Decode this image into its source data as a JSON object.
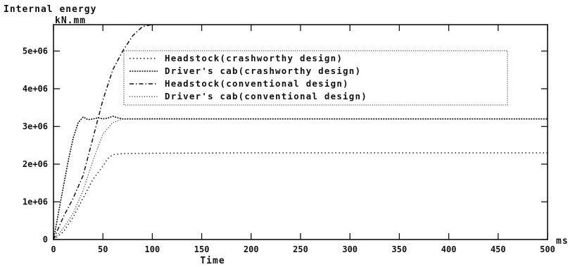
{
  "chart_data": {
    "type": "line",
    "title": "Internal energy",
    "ylabel_unit": "kN.mm",
    "xlabel": "Time",
    "xlabel_unit": "ms",
    "xlim": [
      0,
      500
    ],
    "ylim": [
      0,
      5700000
    ],
    "x_ticks": [
      0,
      50,
      100,
      150,
      200,
      250,
      300,
      350,
      400,
      450,
      500
    ],
    "x_tick_labels": [
      "0",
      "50",
      "100",
      "150",
      "200",
      "250",
      "300",
      "350",
      "400",
      "450",
      "500"
    ],
    "y_ticks": [
      0,
      1000000,
      2000000,
      3000000,
      4000000,
      5000000
    ],
    "y_tick_labels": [
      "0",
      "1e+06",
      "2e+06",
      "3e+06",
      "4e+06",
      "5e+06"
    ],
    "legend_position": "upper-center",
    "grid": false,
    "series": [
      {
        "name": "Headstock(crashworthy design)",
        "style": "dotted",
        "x": [
          0,
          10,
          20,
          30,
          40,
          50,
          55,
          60,
          70,
          100,
          200,
          300,
          400,
          500
        ],
        "y": [
          0,
          200000,
          600000,
          1100000,
          1600000,
          1950000,
          2150000,
          2250000,
          2280000,
          2290000,
          2300000,
          2300000,
          2300000,
          2300000
        ]
      },
      {
        "name": "Driver's cab(crashworthy design)",
        "style": "dense-dotted",
        "x": [
          0,
          5,
          10,
          15,
          20,
          25,
          30,
          35,
          40,
          45,
          50,
          55,
          60,
          65,
          70,
          80,
          100,
          200,
          300,
          400,
          500
        ],
        "y": [
          0,
          700000,
          1400000,
          2100000,
          2700000,
          3100000,
          3250000,
          3180000,
          3200000,
          3230000,
          3200000,
          3220000,
          3270000,
          3230000,
          3200000,
          3200000,
          3200000,
          3200000,
          3200000,
          3200000,
          3200000
        ]
      },
      {
        "name": "Headstock(conventional design)",
        "style": "dash-dot",
        "x": [
          0,
          10,
          20,
          30,
          40,
          50,
          60,
          70,
          80,
          90,
          100
        ],
        "y": [
          0,
          600000,
          1100000,
          1700000,
          2700000,
          3700000,
          4500000,
          5000000,
          5400000,
          5650000,
          5700000
        ]
      },
      {
        "name": "Driver's cab(conventional design)",
        "style": "dotted-fine",
        "x": [
          0,
          10,
          20,
          30,
          40,
          50,
          60,
          70,
          100,
          200,
          300,
          400,
          500
        ],
        "y": [
          0,
          300000,
          700000,
          1300000,
          2100000,
          2800000,
          3100000,
          3200000,
          3210000,
          3200000,
          3200000,
          3200000,
          3200000
        ]
      }
    ]
  }
}
